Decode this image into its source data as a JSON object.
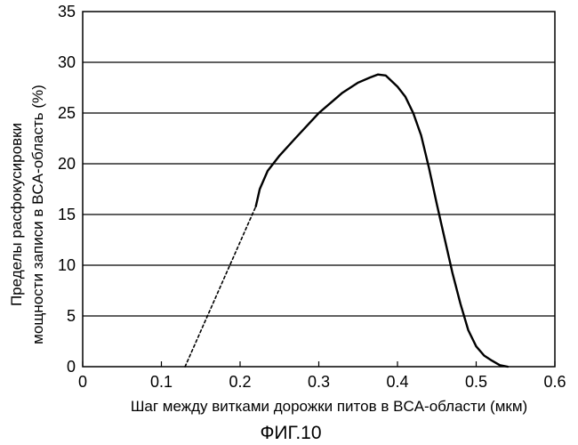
{
  "chart_data": {
    "type": "line",
    "xlabel": "Шаг между витками дорожки питов в BCA-области (мкм)",
    "ylabel_line1": "Пределы расфокусировки",
    "ylabel_line2": "мощности записи в BCA-область (%)",
    "caption": "ФИГ.10",
    "xlim": [
      0,
      0.6
    ],
    "ylim": [
      0,
      35
    ],
    "x_ticks": [
      "0",
      "0.1",
      "0.2",
      "0.3",
      "0.4",
      "0.5",
      "0.6"
    ],
    "y_ticks": [
      "0",
      "5",
      "10",
      "15",
      "20",
      "25",
      "30",
      "35"
    ],
    "grid": {
      "horizontal": true,
      "vertical": false
    },
    "series": [
      {
        "style": "solid",
        "x": [
          0.22,
          0.225,
          0.235,
          0.25,
          0.27,
          0.3,
          0.33,
          0.35,
          0.365,
          0.375,
          0.385,
          0.4,
          0.41,
          0.42,
          0.43,
          0.44,
          0.45,
          0.46,
          0.47,
          0.48,
          0.49,
          0.5,
          0.51,
          0.52,
          0.53,
          0.54
        ],
        "y": [
          15.8,
          17.5,
          19.3,
          20.8,
          22.5,
          25.0,
          27.0,
          28.0,
          28.5,
          28.8,
          28.7,
          27.6,
          26.6,
          25.0,
          22.8,
          19.6,
          16.0,
          12.6,
          9.2,
          6.2,
          3.6,
          2.0,
          1.1,
          0.6,
          0.15,
          0
        ]
      },
      {
        "style": "dashed",
        "x": [
          0.13,
          0.22
        ],
        "y": [
          0,
          15.8
        ]
      }
    ]
  }
}
